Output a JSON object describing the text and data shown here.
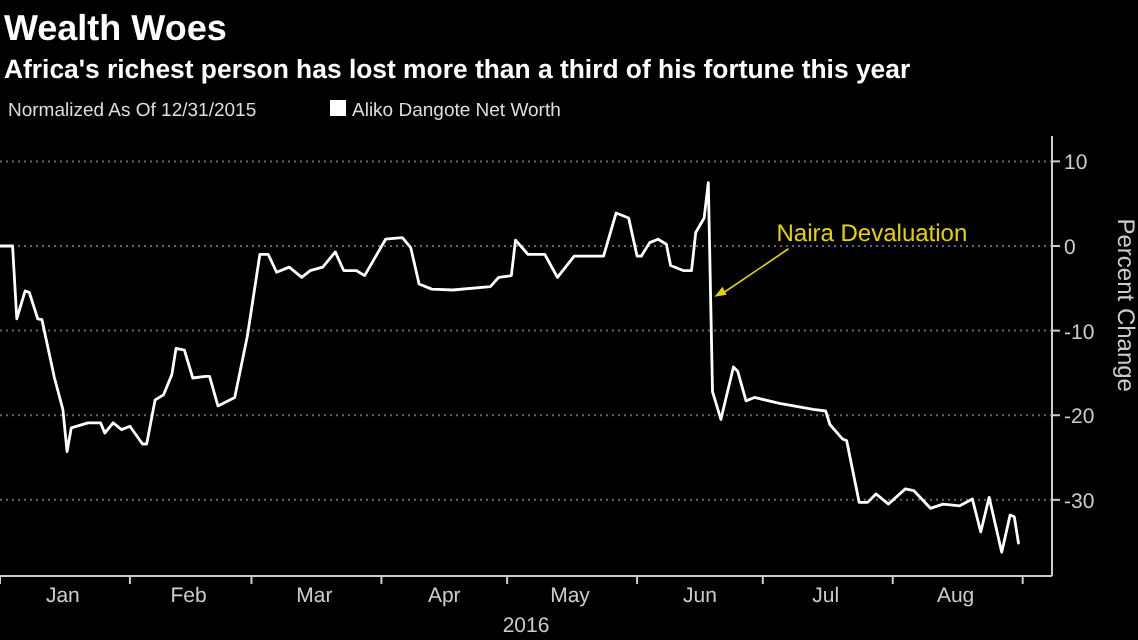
{
  "chart_data": {
    "type": "line",
    "title": "Wealth Woes",
    "subtitle": "Africa's richest person has lost more than a third of his fortune this year",
    "annotations": [
      "Normalized As Of 12/31/2015",
      {
        "text": "Naira Devaluation",
        "x": "2016-06-19",
        "y": -6
      }
    ],
    "xlabel": "2016",
    "ylabel": "Percent Change",
    "x": [
      "2016-01-01",
      "2016-01-04",
      "2016-01-05",
      "2016-01-07",
      "2016-01-08",
      "2016-01-10",
      "2016-01-11",
      "2016-01-14",
      "2016-01-16",
      "2016-01-17",
      "2016-01-18",
      "2016-01-22",
      "2016-01-25",
      "2016-01-26",
      "2016-01-28",
      "2016-01-30",
      "2016-02-01",
      "2016-02-04",
      "2016-02-05",
      "2016-02-07",
      "2016-02-09",
      "2016-02-11",
      "2016-02-12",
      "2016-02-14",
      "2016-02-16",
      "2016-02-19",
      "2016-02-20",
      "2016-02-22",
      "2016-02-24",
      "2016-02-26",
      "2016-02-29",
      "2016-03-03",
      "2016-03-05",
      "2016-03-07",
      "2016-03-10",
      "2016-03-13",
      "2016-03-15",
      "2016-03-18",
      "2016-03-21",
      "2016-03-23",
      "2016-03-26",
      "2016-03-28",
      "2016-04-02",
      "2016-04-06",
      "2016-04-08",
      "2016-04-10",
      "2016-04-13",
      "2016-04-18",
      "2016-04-27",
      "2016-04-29",
      "2016-05-02",
      "2016-05-03",
      "2016-05-06",
      "2016-05-10",
      "2016-05-13",
      "2016-05-17",
      "2016-05-24",
      "2016-05-27",
      "2016-05-30",
      "2016-06-01",
      "2016-06-02",
      "2016-06-04",
      "2016-06-06",
      "2016-06-08",
      "2016-06-09",
      "2016-06-12",
      "2016-06-14",
      "2016-06-15",
      "2016-06-17",
      "2016-06-18",
      "2016-06-19",
      "2016-06-21",
      "2016-06-24",
      "2016-06-25",
      "2016-06-27",
      "2016-06-29",
      "2016-07-05",
      "2016-07-13",
      "2016-07-16",
      "2016-07-17",
      "2016-07-20",
      "2016-07-21",
      "2016-07-24",
      "2016-07-26",
      "2016-07-28",
      "2016-07-31",
      "2016-08-04",
      "2016-08-06",
      "2016-08-10",
      "2016-08-13",
      "2016-08-17",
      "2016-08-20",
      "2016-08-22",
      "2016-08-24",
      "2016-08-27",
      "2016-08-29",
      "2016-08-30",
      "2016-08-31"
    ],
    "series": [
      {
        "name": "Aliko Dangote Net Worth",
        "color": "#ffffff",
        "values": [
          0,
          0,
          -8.6,
          -5.3,
          -5.5,
          -8.6,
          -8.7,
          -15.6,
          -19.3,
          -24.3,
          -21.5,
          -20.9,
          -20.9,
          -22.1,
          -20.9,
          -21.7,
          -21.3,
          -23.4,
          -23.4,
          -18.2,
          -17.6,
          -15.2,
          -12.1,
          -12.3,
          -15.6,
          -15.4,
          -15.4,
          -18.9,
          -18.4,
          -17.9,
          -10.7,
          -1,
          -1,
          -3.1,
          -2.5,
          -3.7,
          -2.9,
          -2.5,
          -0.7,
          -2.9,
          -2.9,
          -3.5,
          0.8,
          1,
          -0.2,
          -4.5,
          -5.1,
          -5.2,
          -4.8,
          -3.7,
          -3.5,
          0.7,
          -1,
          -1,
          -3.7,
          -1.2,
          -1.2,
          3.9,
          3.3,
          -1.2,
          -1.2,
          0.4,
          0.8,
          0.2,
          -2.3,
          -2.9,
          -2.9,
          1.6,
          3.3,
          7.5,
          -17.2,
          -20.5,
          -14.3,
          -14.8,
          -18.3,
          -17.9,
          -18.6,
          -19.3,
          -19.5,
          -21.1,
          -22.8,
          -23,
          -30.3,
          -30.3,
          -29.3,
          -30.5,
          -28.7,
          -28.9,
          -31,
          -30.5,
          -30.7,
          -29.9,
          -33.8,
          -29.7,
          -36.2,
          -31.8,
          -32,
          -35.1
        ]
      }
    ],
    "xlim": [
      "2016-01-01",
      "2016-09-08"
    ],
    "xticks": [
      {
        "value": "2016-01-01",
        "label": null
      },
      {
        "value": "2016-01-16",
        "label": "Jan"
      },
      {
        "value": "2016-02-01",
        "label": null
      },
      {
        "value": "2016-02-15",
        "label": "Feb"
      },
      {
        "value": "2016-03-01",
        "label": null
      },
      {
        "value": "2016-03-16",
        "label": "Mar"
      },
      {
        "value": "2016-04-01",
        "label": null
      },
      {
        "value": "2016-04-16",
        "label": "Apr"
      },
      {
        "value": "2016-05-01",
        "label": null
      },
      {
        "value": "2016-05-16",
        "label": "May"
      },
      {
        "value": "2016-06-01",
        "label": null
      },
      {
        "value": "2016-06-16",
        "label": "Jun"
      },
      {
        "value": "2016-07-01",
        "label": null
      },
      {
        "value": "2016-07-16",
        "label": "Jul"
      },
      {
        "value": "2016-08-01",
        "label": null
      },
      {
        "value": "2016-08-16",
        "label": "Aug"
      },
      {
        "value": "2016-09-01",
        "label": null
      }
    ],
    "ylim": [
      -39,
      13
    ],
    "yticks": [
      10,
      0,
      -10,
      -20,
      -30
    ],
    "grid": "y",
    "legend": "top left",
    "line_style": "solid",
    "marker": "none"
  }
}
